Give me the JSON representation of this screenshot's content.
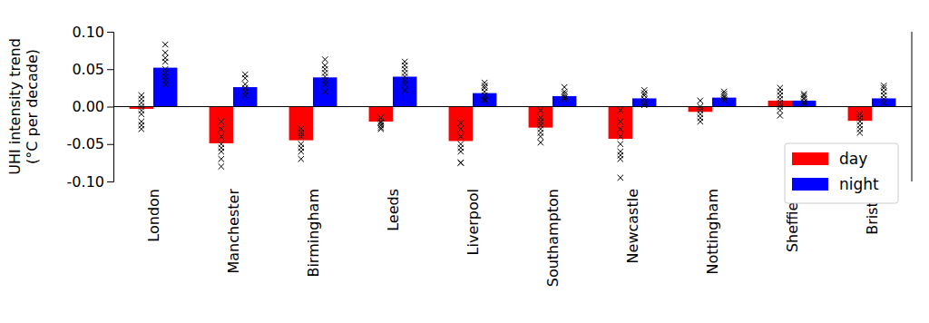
{
  "chart_data": {
    "type": "bar",
    "y_label": [
      "UHI intensity trend",
      "(°C per decade)"
    ],
    "categories": [
      "London",
      "Manchester",
      "Birmingham",
      "Leeds",
      "Liverpool",
      "Southampton",
      "Newcastle",
      "Nottingham",
      "Sheffield",
      "Bristol"
    ],
    "series": [
      {
        "name": "day",
        "color": "#ff0000",
        "values": [
          -0.003,
          -0.049,
          -0.045,
          -0.02,
          -0.046,
          -0.028,
          -0.043,
          -0.007,
          0.008,
          -0.019
        ],
        "members": [
          [
            0.015,
            0.01,
            0.005,
            0.0,
            -0.005,
            -0.01,
            -0.02,
            -0.025,
            -0.03
          ],
          [
            -0.02,
            -0.03,
            -0.04,
            -0.05,
            -0.055,
            -0.06,
            -0.07,
            -0.08
          ],
          [
            -0.03,
            -0.035,
            -0.04,
            -0.05,
            -0.055,
            -0.06,
            -0.07
          ],
          [
            -0.015,
            -0.02,
            -0.022,
            -0.025,
            -0.028,
            -0.03
          ],
          [
            -0.022,
            -0.03,
            -0.04,
            -0.05,
            -0.055,
            -0.06,
            -0.075,
            -0.075
          ],
          [
            -0.005,
            -0.015,
            -0.02,
            -0.025,
            -0.03,
            -0.035,
            -0.04,
            -0.048
          ],
          [
            -0.005,
            -0.02,
            -0.03,
            -0.04,
            -0.05,
            -0.06,
            -0.065,
            -0.07,
            -0.095
          ],
          [
            0.008,
            0.0,
            -0.005,
            -0.01,
            -0.015,
            -0.02
          ],
          [
            0.025,
            0.02,
            0.015,
            0.01,
            0.005,
            0.0,
            -0.005,
            -0.012
          ],
          [
            -0.01,
            -0.015,
            -0.02,
            -0.025,
            -0.03,
            -0.035
          ]
        ]
      },
      {
        "name": "night",
        "color": "#0000ff",
        "values": [
          0.052,
          0.026,
          0.039,
          0.04,
          0.018,
          0.014,
          0.011,
          0.012,
          0.008,
          0.011
        ],
        "members": [
          [
            0.083,
            0.072,
            0.065,
            0.06,
            0.05,
            0.045,
            0.04,
            0.035,
            0.03
          ],
          [
            0.043,
            0.038,
            0.03,
            0.025,
            0.02,
            0.015
          ],
          [
            0.063,
            0.055,
            0.05,
            0.045,
            0.04,
            0.035,
            0.03,
            0.02
          ],
          [
            0.06,
            0.055,
            0.05,
            0.045,
            0.04,
            0.035,
            0.03,
            0.022
          ],
          [
            0.032,
            0.028,
            0.025,
            0.02,
            0.015,
            0.01,
            0.008
          ],
          [
            0.026,
            0.02,
            0.017,
            0.014,
            0.012,
            0.01
          ],
          [
            0.022,
            0.018,
            0.015,
            0.01,
            0.005,
            0.002
          ],
          [
            0.02,
            0.017,
            0.014,
            0.012,
            0.009
          ],
          [
            0.017,
            0.015,
            0.012,
            0.01,
            0.006,
            0.003
          ],
          [
            0.028,
            0.025,
            0.02,
            0.015,
            0.01,
            0.005
          ]
        ]
      }
    ],
    "marker": "x",
    "ylim": [
      -0.1,
      0.1
    ],
    "yticks": [
      {
        "value": -0.1,
        "label": "-0.10"
      },
      -0.05,
      {
        "value": 0.0,
        "label": "0.00"
      },
      0.05,
      {
        "value": 0.1,
        "label": "0.10"
      }
    ],
    "legend": "lower right"
  }
}
